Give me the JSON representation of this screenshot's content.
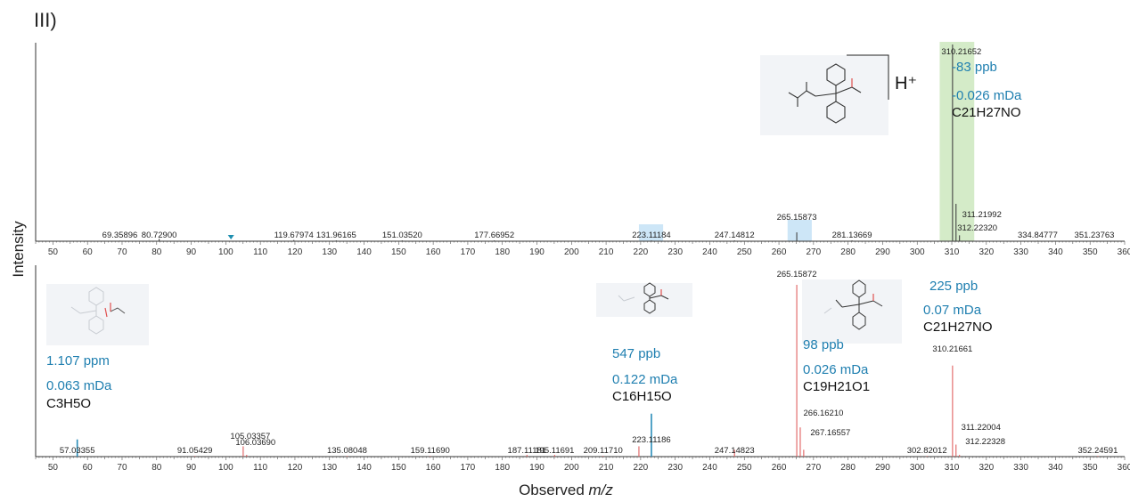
{
  "panel_label": "III)",
  "chart_data": [
    {
      "type": "bar",
      "panel": "top",
      "xlabel": "Observed m/z",
      "ylabel": "Intensity",
      "xlim": [
        45,
        360
      ],
      "x_ticks": [
        50,
        60,
        70,
        80,
        90,
        100,
        110,
        120,
        130,
        140,
        150,
        160,
        170,
        180,
        190,
        200,
        210,
        220,
        230,
        240,
        250,
        260,
        270,
        280,
        290,
        300,
        310,
        320,
        330,
        340,
        350,
        360
      ],
      "peaks": [
        {
          "x": 69.35896,
          "y": 0.003,
          "label": "69.35896"
        },
        {
          "x": 80.729,
          "y": 0.012,
          "label": "80.72900"
        },
        {
          "x": 119.67974,
          "y": 0.006,
          "label": "119.67974"
        },
        {
          "x": 131.96165,
          "y": 0.004,
          "label": "131.96165"
        },
        {
          "x": 151.0352,
          "y": 0.004,
          "label": "151.03520"
        },
        {
          "x": 177.66952,
          "y": 0.004,
          "label": "177.66952"
        },
        {
          "x": 223.11184,
          "y": 0.004,
          "label": "223.11184"
        },
        {
          "x": 247.14812,
          "y": 0.004,
          "label": "247.14812"
        },
        {
          "x": 265.15873,
          "y": 0.045,
          "label": "265.15873"
        },
        {
          "x": 281.13669,
          "y": 0.004,
          "label": "281.13669"
        },
        {
          "x": 310.21652,
          "y": 1.0,
          "label": "310.21652"
        },
        {
          "x": 311.21992,
          "y": 0.19,
          "label": "311.21992"
        },
        {
          "x": 312.2232,
          "y": 0.03,
          "label": "312.22320"
        },
        {
          "x": 334.84777,
          "y": 0.003,
          "label": "334.84777"
        },
        {
          "x": 351.23763,
          "y": 0.003,
          "label": "351.23763"
        }
      ],
      "highlights": [
        {
          "from": 219.5,
          "to": 226.5,
          "color": "#cde6f7"
        },
        {
          "from": 262.5,
          "to": 269.5,
          "color": "#cde6f7"
        },
        {
          "from": 306.5,
          "to": 316.5,
          "color": "#d4ebc8"
        }
      ],
      "marker": {
        "x": 101.5,
        "color": "#1f8fb0"
      },
      "annotation": {
        "ion": "H⁺",
        "ppb": "-83 ppb",
        "mda": "-0.026 mDa",
        "formula": "C21H27NO"
      }
    },
    {
      "type": "bar",
      "panel": "bottom",
      "xlabel": "Observed m/z",
      "ylabel": "Intensity",
      "xlim": [
        45,
        360
      ],
      "x_ticks": [
        50,
        60,
        70,
        80,
        90,
        100,
        110,
        120,
        130,
        140,
        150,
        160,
        170,
        180,
        190,
        200,
        210,
        220,
        230,
        240,
        250,
        260,
        270,
        280,
        290,
        300,
        310,
        320,
        330,
        340,
        350,
        360
      ],
      "peaks": [
        {
          "x": 57.03355,
          "y": 0.1,
          "label": "57.03355",
          "highlight": true
        },
        {
          "x": 91.05429,
          "y": 0.004,
          "label": "91.05429"
        },
        {
          "x": 105.03357,
          "y": 0.06,
          "label": "105.03357"
        },
        {
          "x": 106.0369,
          "y": 0.01,
          "label": "106.03690"
        },
        {
          "x": 135.08048,
          "y": 0.004,
          "label": "135.08048"
        },
        {
          "x": 159.1169,
          "y": 0.004,
          "label": "159.11690"
        },
        {
          "x": 187.11181,
          "y": 0.01,
          "label": "187.11181"
        },
        {
          "x": 195.11691,
          "y": 0.01,
          "label": "195.11691"
        },
        {
          "x": 209.1171,
          "y": 0.004,
          "label": "209.11710"
        },
        {
          "x": 219.5,
          "y": 0.06
        },
        {
          "x": 223.11186,
          "y": 0.25,
          "label": "223.11186",
          "highlight": true
        },
        {
          "x": 247.14823,
          "y": 0.04,
          "label": "247.14823"
        },
        {
          "x": 265.15872,
          "y": 1.0,
          "label": "265.15872"
        },
        {
          "x": 266.1621,
          "y": 0.17,
          "label": "266.16210"
        },
        {
          "x": 267.16557,
          "y": 0.04,
          "label": "267.16557"
        },
        {
          "x": 302.82012,
          "y": 0.004,
          "label": "302.82012"
        },
        {
          "x": 310.21661,
          "y": 0.53,
          "label": "310.21661"
        },
        {
          "x": 311.22004,
          "y": 0.07,
          "label": "311.22004"
        },
        {
          "x": 312.22328,
          "y": 0.01,
          "label": "312.22328"
        },
        {
          "x": 352.24591,
          "y": 0.004,
          "label": "352.24591"
        }
      ],
      "annotations": [
        {
          "ppb": "1.107 ppm",
          "mda": "0.063 mDa",
          "formula": "C3H5O"
        },
        {
          "ppb": "547 ppb",
          "mda": "0.122 mDa",
          "formula": "C16H15O"
        },
        {
          "ppb": "98 ppb",
          "mda": "0.026 mDa",
          "formula": "C19H21O1"
        },
        {
          "ppb": "225 ppb",
          "mda": "0.07 mDa",
          "formula": "C21H27NO"
        }
      ]
    }
  ],
  "colors": {
    "red_peak": "#e06060",
    "blue_peak": "#2a8cb8",
    "black_peak": "#444444",
    "blue_text": "#1f7fb0"
  }
}
